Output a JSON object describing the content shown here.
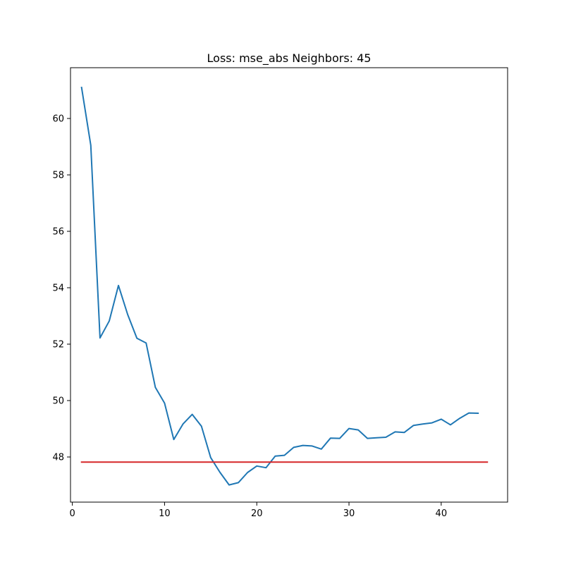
{
  "chart_data": {
    "type": "line",
    "title": "Loss: mse_abs Neighbors: 45",
    "xlabel": "",
    "ylabel": "",
    "xlim": [
      -0.2,
      47.2
    ],
    "ylim": [
      46.4,
      61.8
    ],
    "x_ticks": [
      0,
      10,
      20,
      30,
      40
    ],
    "y_ticks": [
      48,
      50,
      52,
      54,
      56,
      58,
      60
    ],
    "grid": false,
    "series": [
      {
        "color": "#1f77b4",
        "x": [
          1,
          2,
          3,
          4,
          5,
          6,
          7,
          8,
          9,
          10,
          11,
          12,
          13,
          14,
          15,
          16,
          17,
          18,
          19,
          20,
          21,
          22,
          23,
          24,
          25,
          26,
          27,
          28,
          29,
          30,
          31,
          32,
          33,
          34,
          35,
          36,
          37,
          38,
          39,
          40,
          41,
          42,
          43,
          44
        ],
        "y": [
          61.1,
          59.05,
          52.22,
          52.82,
          54.08,
          53.05,
          52.21,
          52.04,
          50.47,
          49.91,
          48.62,
          49.17,
          49.51,
          49.09,
          47.98,
          47.46,
          47.01,
          47.09,
          47.45,
          47.68,
          47.62,
          48.03,
          48.06,
          48.34,
          48.41,
          48.39,
          48.28,
          48.67,
          48.66,
          49.01,
          48.96,
          48.66,
          48.68,
          48.7,
          48.89,
          48.87,
          49.12,
          49.17,
          49.21,
          49.34,
          49.14,
          49.37,
          49.56,
          49.55
        ]
      },
      {
        "color": "#d62728",
        "x": [
          1,
          45
        ],
        "y": [
          47.82,
          47.82
        ]
      }
    ]
  }
}
